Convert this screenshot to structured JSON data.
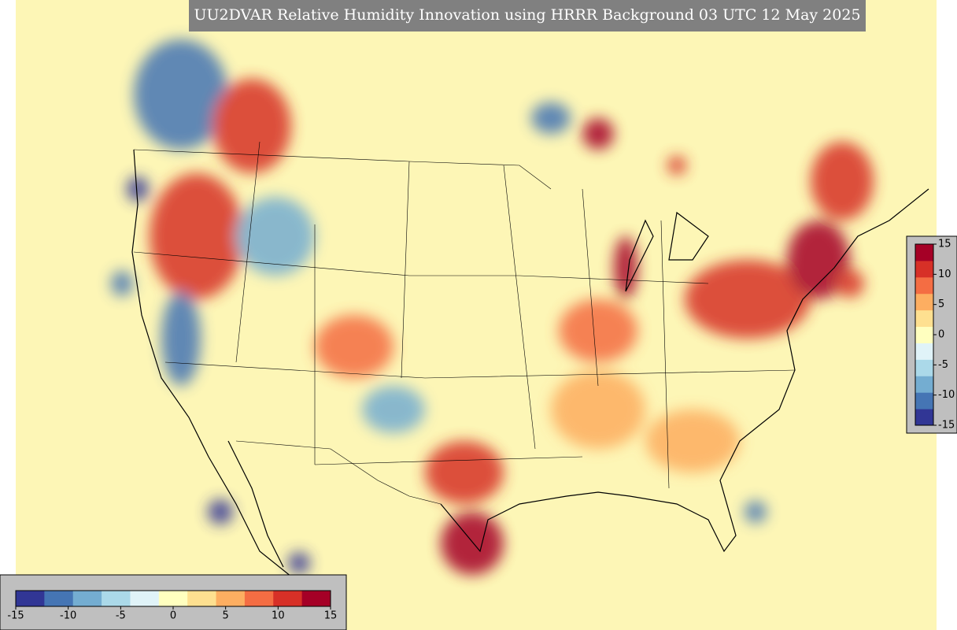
{
  "title": "UU2DVAR Relative Humidity Innovation using HRRR Background 03 UTC 12 May 2025",
  "colorbar": {
    "range": [
      -15,
      15
    ],
    "colors": [
      "#313695",
      "#4575b4",
      "#74add1",
      "#abd9e9",
      "#e0f3f8",
      "#ffffbf",
      "#fee090",
      "#fdae61",
      "#f46d43",
      "#d73027",
      "#a50026"
    ],
    "horizontal_ticks": [
      -15,
      -10,
      -5,
      0,
      5,
      10,
      15
    ],
    "vertical_ticks": [
      15,
      10,
      5,
      0,
      -5,
      -10,
      -15
    ]
  }
}
